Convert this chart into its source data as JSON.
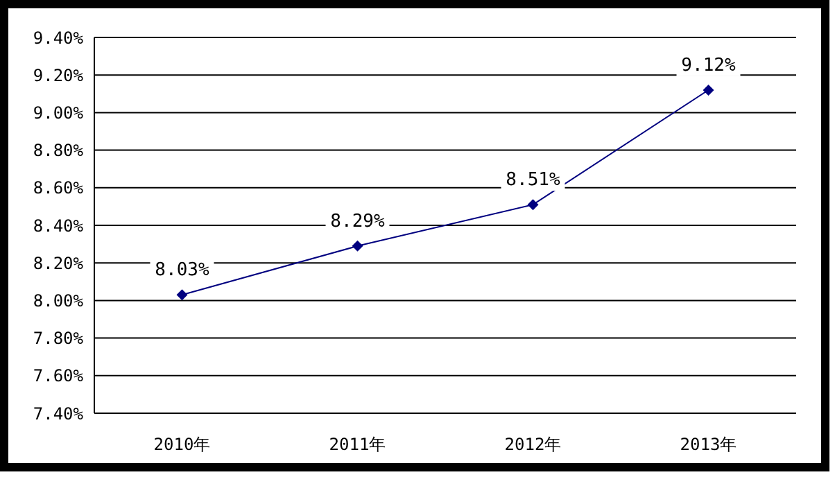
{
  "chart_data": {
    "type": "line",
    "categories": [
      "2010年",
      "2011年",
      "2012年",
      "2013年"
    ],
    "series": [
      {
        "color": "#000080",
        "values": [
          8.03,
          8.29,
          8.51,
          9.12
        ],
        "value_labels": [
          "8.03%",
          "8.29%",
          "8.51%",
          "9.12%"
        ]
      }
    ],
    "ylim": [
      7.4,
      9.4
    ],
    "yticks": [
      {
        "value": 7.4,
        "label": "7.40%"
      },
      {
        "value": 7.6,
        "label": "7.60%"
      },
      {
        "value": 7.8,
        "label": "7.80%"
      },
      {
        "value": 8.0,
        "label": "8.00%"
      },
      {
        "value": 8.2,
        "label": "8.20%"
      },
      {
        "value": 8.4,
        "label": "8.40%"
      },
      {
        "value": 8.6,
        "label": "8.60%"
      },
      {
        "value": 8.8,
        "label": "8.80%"
      },
      {
        "value": 9.0,
        "label": "9.00%"
      },
      {
        "value": 9.2,
        "label": "9.20%"
      },
      {
        "value": 9.4,
        "label": "9.40%"
      }
    ],
    "grid": "y",
    "legend": false,
    "marker": "diamond",
    "line_style": "solid"
  }
}
